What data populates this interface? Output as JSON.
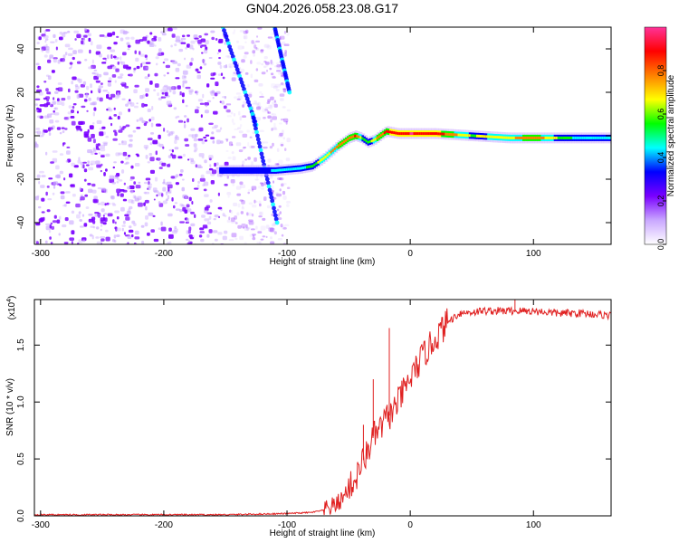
{
  "title": "GN04.2026.058.23.08.G17",
  "chart_data": [
    {
      "type": "heatmap",
      "xlabel": "Height of straight line (km)",
      "ylabel": "Frequency (Hz)",
      "xlim": [
        -305,
        163
      ],
      "ylim": [
        -50,
        50
      ],
      "xticks": [
        -300,
        -200,
        -100,
        0,
        100
      ],
      "xtick_labels": [
        "-300",
        "-200",
        "-100",
        "0",
        "100"
      ],
      "yticks": [
        -40,
        -20,
        0,
        20,
        40
      ],
      "ytick_labels": [
        "-40",
        "-20",
        "0",
        "20",
        "40"
      ],
      "colorbar": {
        "label": "Normalized spectral amplitude",
        "range": [
          0,
          1
        ],
        "ticks": [
          0.0,
          0.2,
          0.4,
          0.6,
          0.8
        ],
        "tick_labels": [
          "0.0",
          "0.2",
          "0.4",
          "0.6",
          "0.8"
        ],
        "colors": [
          "#ffffff",
          "#c9a7ff",
          "#7a00ff",
          "#0000ff",
          "#00ffff",
          "#00ff00",
          "#ffff00",
          "#ff8000",
          "#ff0000",
          "#ff3399"
        ]
      },
      "signal_track": {
        "x": [
          -155,
          -130,
          -110,
          -90,
          -80,
          -70,
          -60,
          -50,
          -45,
          -40,
          -35,
          -30,
          -25,
          -20,
          -10,
          0,
          20,
          50,
          80,
          100,
          130,
          163
        ],
        "frequency": [
          -16,
          -16,
          -16,
          -15,
          -14,
          -10,
          -5,
          -1,
          0,
          -1,
          -3,
          -2,
          0,
          2,
          1,
          1,
          1,
          0,
          -1,
          -1,
          -1,
          -1
        ],
        "amplitude": [
          0.3,
          0.35,
          0.4,
          0.45,
          0.55,
          0.7,
          0.75,
          0.8,
          0.85,
          0.6,
          0.5,
          0.7,
          0.8,
          0.85,
          0.9,
          0.95,
          0.9,
          0.6,
          0.7,
          0.8,
          0.5,
          0.4
        ]
      },
      "noise_region_x": [
        -305,
        -100
      ],
      "grid": false,
      "legend": "none"
    },
    {
      "type": "line",
      "xlabel": "Height of straight line (km)",
      "ylabel": "SNR (10 * v/v)",
      "scale_label": "(x10",
      "scale_exponent": "4",
      "xlim": [
        -305,
        163
      ],
      "ylim": [
        0,
        1.9
      ],
      "xticks": [
        -300,
        -200,
        -100,
        0,
        100
      ],
      "xtick_labels": [
        "-300",
        "-200",
        "-100",
        "0",
        "100"
      ],
      "yticks": [
        0.0,
        0.5,
        1.0,
        1.5
      ],
      "ytick_labels": [
        "0.0",
        "0.5",
        "1.0",
        "1.5"
      ],
      "series": [
        {
          "color": "#e02020",
          "x": [
            -305,
            -250,
            -200,
            -150,
            -100,
            -80,
            -70,
            -60,
            -55,
            -50,
            -45,
            -40,
            -35,
            -30,
            -25,
            -20,
            -15,
            -10,
            -5,
            0,
            10,
            20,
            30,
            40,
            60,
            80,
            100,
            120,
            140,
            163
          ],
          "y": [
            0.01,
            0.01,
            0.01,
            0.01,
            0.02,
            0.03,
            0.05,
            0.1,
            0.15,
            0.25,
            0.3,
            0.45,
            0.55,
            0.7,
            0.75,
            0.85,
            0.9,
            1.0,
            1.1,
            1.2,
            1.4,
            1.55,
            1.7,
            1.78,
            1.8,
            1.8,
            1.8,
            1.78,
            1.78,
            1.76
          ]
        }
      ],
      "spikes": [
        {
          "x": -17,
          "y": 1.65
        },
        {
          "x": -30,
          "y": 1.2
        },
        {
          "x": -38,
          "y": 0.8
        },
        {
          "x": 85,
          "y": 1.9
        }
      ],
      "grid": false,
      "legend": "none"
    }
  ]
}
